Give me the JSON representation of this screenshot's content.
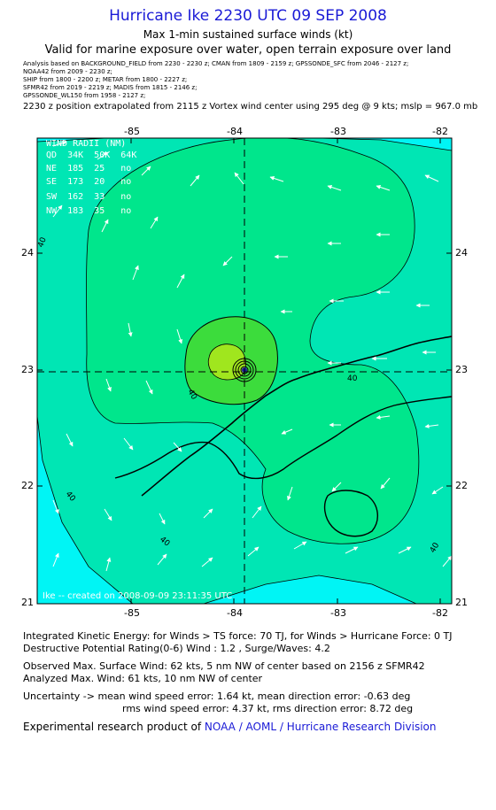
{
  "title": "Hurricane Ike 2230 UTC 09 SEP 2008",
  "subtitle1": "Max 1-min sustained surface winds (kt)",
  "subtitle2": "Valid for marine exposure over water, open terrain exposure over land",
  "analysis_lines": [
    "Analysis based on   BACKGROUND_FIELD from 2230 - 2230 z;   CMAN from 1809 - 2159 z;   GPSSONDE_SFC from 2046 - 2127 z;",
    "NOAA42 from 2009 - 2230 z;",
    "SHIP from 1800 - 2200 z;   METAR from 1800 - 2227 z;",
    "SFMR42 from 2019 - 2219 z;   MADIS from 1815 - 2146 z;",
    "GPSSONDE_WL150 from 1958 - 2127 z;"
  ],
  "position_line": "2230 z position extrapolated from 2115 z Vortex wind center using 295 deg @ 9 kts; mslp = 967.0 mb",
  "map": {
    "lon_labels": [
      "-85",
      "-84",
      "-83",
      "-82"
    ],
    "lat_labels": [
      "24",
      "23",
      "22",
      "21"
    ],
    "wind_radii": {
      "header": "WIND RADII (NM)",
      "columns": "QD  34K  50K  64K",
      "rows": [
        "NE  185  25   no",
        "SE  173  20   no",
        "SW  162  33   no",
        "NW  183  35   no"
      ]
    },
    "contour_labels": [
      "40",
      "40",
      "40",
      "40",
      "40",
      "40"
    ],
    "credit": "Ike -- created on 2008-09-09 23:11:35 UTC",
    "colors": {
      "ocean_cyan": "#00f5f5",
      "band_30": "#00e6b4",
      "band_40": "#00e68c",
      "band_50": "#3cdc3c",
      "band_60": "#a0e61e",
      "land_stroke": "#000000",
      "title_blue": "#1a1ad6"
    }
  },
  "footer": {
    "ike": "Integrated Kinetic Energy:  for Winds > TS force: 70 TJ,  for Winds > Hurricane Force: 0 TJ",
    "dpr": "Destructive Potential Rating(0-6)   Wind : 1.2 , Surge/Waves: 4.2",
    "obs_max": "Observed Max. Surface Wind: 62 kts, 5 nm NW of center based on 2156 z SFMR42",
    "ana_max": "Analyzed Max. Wind: 61 kts, 10 nm NW of center",
    "unc1": "Uncertainty -> mean wind speed error: 1.64 kt,   mean direction error:  -0.63 deg",
    "unc2": "rms wind speed error: 4.37 kt,   rms direction error: 8.72 deg",
    "product_prefix": "Experimental research product of ",
    "product_org": "NOAA / AOML / Hurricane Research Division"
  }
}
